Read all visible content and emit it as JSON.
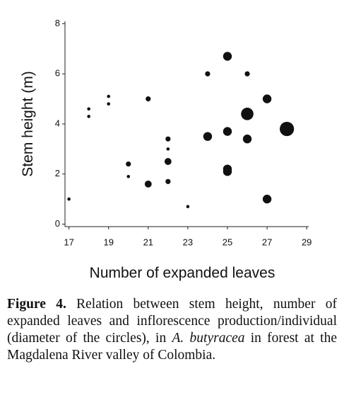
{
  "chart_data": {
    "type": "scatter",
    "x_label": "Number of expanded leaves",
    "y_label": "Stem height (m)",
    "xlim": [
      16.8,
      29.1
    ],
    "xticks": [
      17,
      19,
      21,
      23,
      25,
      27,
      29
    ],
    "ylim": [
      -0.1,
      8.1
    ],
    "yticks": [
      0,
      2,
      4,
      6,
      8
    ],
    "color": "#111111",
    "x": [
      17,
      18,
      18,
      19,
      19,
      20,
      20,
      21,
      21,
      22,
      22,
      22,
      22,
      23,
      24,
      24,
      25,
      25,
      25,
      25,
      26,
      26,
      26,
      27,
      27,
      28
    ],
    "values": [
      1.0,
      4.6,
      4.3,
      5.1,
      4.8,
      2.4,
      1.9,
      5.0,
      1.6,
      3.4,
      3.0,
      2.5,
      1.7,
      0.7,
      6.0,
      3.5,
      6.7,
      3.7,
      2.1,
      2.2,
      6.0,
      4.4,
      3.4,
      5.0,
      1.0,
      3.8
    ],
    "sizes": [
      1,
      1,
      1,
      1,
      1,
      2,
      1,
      2,
      3,
      2,
      1,
      3,
      2,
      1,
      2,
      4,
      4,
      4,
      4,
      4,
      2,
      6,
      4,
      4,
      4,
      7
    ]
  },
  "caption": {
    "label": "Figure 4.",
    "text_before": " Relation between stem height, number of expanded leaves and inflorescence production/individual (diameter of the circles), in ",
    "species": "A. butyracea",
    "text_after": " in forest at the Magdalena River valley of Colombia."
  }
}
